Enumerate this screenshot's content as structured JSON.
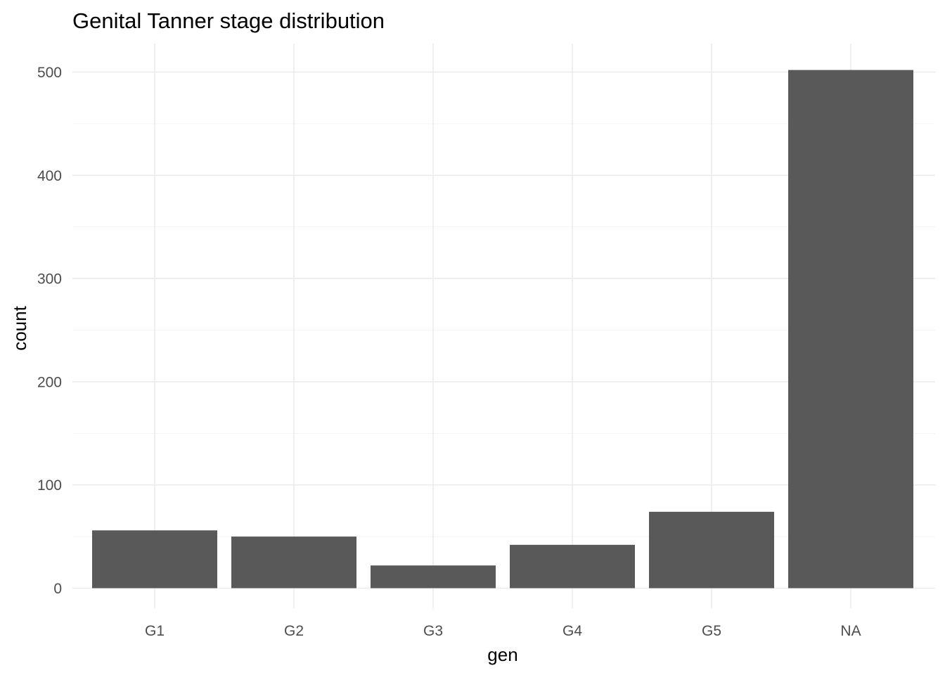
{
  "chart_data": {
    "type": "bar",
    "title": "Genital Tanner stage distribution",
    "xlabel": "gen",
    "ylabel": "count",
    "categories": [
      "G1",
      "G2",
      "G3",
      "G4",
      "G5",
      "NA"
    ],
    "values": [
      56,
      50,
      22,
      42,
      74,
      502
    ],
    "ylim": [
      0,
      520
    ],
    "yticks": [
      0,
      100,
      200,
      300,
      400,
      500
    ],
    "grid": true,
    "legend": "none",
    "bar_color": "#595959"
  }
}
